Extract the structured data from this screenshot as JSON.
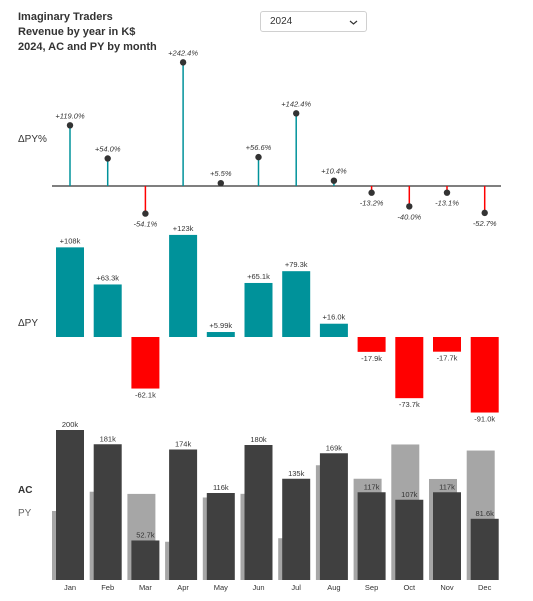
{
  "header": {
    "title_lines": [
      "Imaginary Traders",
      "Revenue by year in K$",
      "2024, AC and PY by month"
    ]
  },
  "year_select": {
    "value": "2024",
    "icon": "chevron-down-icon"
  },
  "row_labels": {
    "dpy_pct": "ΔPY%",
    "dpy": "ΔPY",
    "ac": "AC",
    "py": "PY"
  },
  "colors": {
    "positive": "#00929a",
    "negative": "#ff0000",
    "ac": "#404040",
    "py": "#a6a6a6",
    "axis": "#333333"
  },
  "chart_data": [
    {
      "type": "lollipop",
      "name": "dpy_pct",
      "categories": [
        "Jan",
        "Feb",
        "Mar",
        "Apr",
        "May",
        "Jun",
        "Jul",
        "Aug",
        "Sep",
        "Oct",
        "Nov",
        "Dec"
      ],
      "values": [
        119.0,
        54.0,
        -54.1,
        242.4,
        5.5,
        56.6,
        142.4,
        10.4,
        -13.2,
        -40.0,
        -13.1,
        -52.7
      ],
      "labels": [
        "+119.0%",
        "+54.0%",
        "-54.1%",
        "+242.4%",
        "+5.5%",
        "+56.6%",
        "+142.4%",
        "+10.4%",
        "-13.2%",
        "-40.0%",
        "-13.1%",
        "-52.7%"
      ]
    },
    {
      "type": "bar",
      "name": "dpy",
      "categories": [
        "Jan",
        "Feb",
        "Mar",
        "Apr",
        "May",
        "Jun",
        "Jul",
        "Aug",
        "Sep",
        "Oct",
        "Nov",
        "Dec"
      ],
      "values": [
        108,
        63.3,
        -62.1,
        123,
        5.99,
        65.1,
        79.3,
        16.0,
        -17.9,
        -73.7,
        -17.7,
        -91.0
      ],
      "labels": [
        "+108k",
        "+63.3k",
        "-62.1k",
        "+123k",
        "+5.99k",
        "+65.1k",
        "+79.3k",
        "+16.0k",
        "-17.9k",
        "-73.7k",
        "-17.7k",
        "-91.0k"
      ]
    },
    {
      "type": "bar",
      "name": "ac_py",
      "categories": [
        "Jan",
        "Feb",
        "Mar",
        "Apr",
        "May",
        "Jun",
        "Jul",
        "Aug",
        "Sep",
        "Oct",
        "Nov",
        "Dec"
      ],
      "series": [
        {
          "name": "AC",
          "values": [
            200,
            181,
            52.7,
            174,
            116,
            180,
            135,
            169,
            117,
            107,
            117,
            81.6
          ],
          "labels": [
            "200k",
            "181k",
            "52.7k",
            "174k",
            "116k",
            "180k",
            "135k",
            "169k",
            "117k",
            "107k",
            "117k",
            "81.6k"
          ]
        },
        {
          "name": "PY",
          "values": [
            92,
            117.7,
            114.8,
            51,
            110,
            114.9,
            55.7,
            153,
            135,
            180.7,
            134.7,
            172.6
          ]
        }
      ]
    }
  ]
}
